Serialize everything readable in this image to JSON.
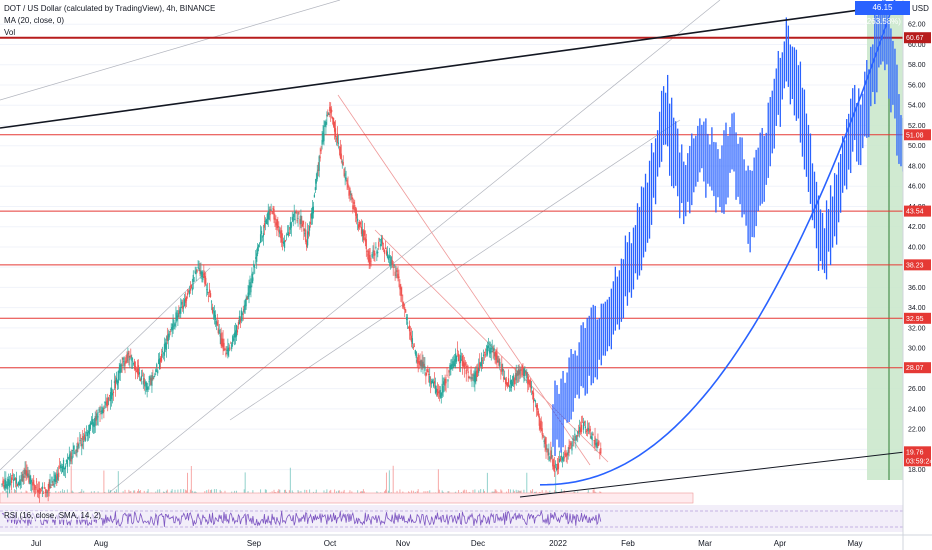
{
  "legend": {
    "title": "DOT / US Dollar (calculated by TradingView), 4h, BINANCE",
    "ma": "MA (20, close, 0)",
    "vol": "Vol"
  },
  "rsi_legend": "RSI (16, close, SMA, 14, 2)",
  "currency": "USD",
  "top_tag": "46.15 (263.58%)",
  "colors": {
    "up": "#26a69a",
    "down": "#ef5350",
    "projection": "#2962ff",
    "hline": "#e53935",
    "hline_dark": "#b71c1c",
    "trend": "#131722",
    "rsi_bg": "#ede7f6",
    "target_zone": "#c8e6c9"
  },
  "chart_data": {
    "type": "candlestick",
    "y_axis": {
      "min": 15,
      "max": 64,
      "ticks": [
        "18.00",
        "20.00",
        "22.00",
        "24.00",
        "26.00",
        "28.00",
        "30.00",
        "32.00",
        "34.00",
        "36.00",
        "38.00",
        "40.00",
        "42.00",
        "44.00",
        "46.00",
        "48.00",
        "50.00",
        "52.00",
        "54.00",
        "56.00",
        "58.00",
        "60.00",
        "62.00"
      ]
    },
    "x_axis": {
      "ticks": [
        "Jul",
        "Aug",
        "Sep",
        "Oct",
        "Nov",
        "Dec",
        "2022",
        "Feb",
        "Mar",
        "Apr",
        "May"
      ]
    },
    "price_lines": [
      {
        "value": 60.67,
        "label": "60.67",
        "style": "dark"
      },
      {
        "value": 51.08,
        "label": "51.08",
        "style": "normal"
      },
      {
        "value": 43.54,
        "label": "43.54",
        "style": "normal"
      },
      {
        "value": 38.23,
        "label": "38.23",
        "style": "normal"
      },
      {
        "value": 32.95,
        "label": "32.95",
        "style": "normal"
      },
      {
        "value": 28.07,
        "label": "28.07",
        "style": "normal"
      }
    ],
    "current_price": {
      "value": 19.76,
      "label": "19.76",
      "countdown": "03:59:24"
    },
    "history_closes": [
      16.5,
      17.2,
      16.8,
      17.6,
      17.0,
      16.4,
      15.8,
      16.2,
      16.9,
      17.8,
      18.6,
      19.2,
      20.1,
      21.0,
      21.8,
      22.6,
      23.5,
      24.2,
      25.4,
      26.8,
      28.4,
      29.2,
      28.6,
      27.4,
      26.1,
      26.8,
      27.9,
      29.5,
      31.2,
      32.6,
      33.8,
      34.9,
      36.2,
      37.8,
      37.1,
      35.4,
      33.2,
      31.0,
      29.6,
      30.4,
      32.1,
      33.8,
      35.6,
      38.4,
      40.9,
      42.8,
      43.6,
      41.9,
      40.3,
      41.7,
      43.2,
      42.6,
      40.5,
      43.8,
      47.9,
      51.6,
      53.9,
      51.2,
      48.6,
      46.3,
      44.1,
      42.2,
      40.9,
      38.6,
      39.8,
      40.5,
      39.1,
      38.3,
      36.4,
      33.6,
      31.2,
      29.1,
      28.4,
      27.3,
      26.2,
      25.1,
      26.8,
      28.1,
      29.4,
      28.6,
      27.5,
      27.1,
      28.3,
      29.6,
      30.2,
      28.9,
      27.6,
      26.4,
      26.9,
      28.0,
      27.4,
      25.8,
      23.6,
      21.2,
      19.6,
      18.2,
      18.8,
      19.6,
      20.5,
      21.8,
      22.4,
      21.6,
      20.7,
      19.9
    ],
    "projection_closes": [
      22.8,
      24.5,
      25.6,
      27.2,
      28.4,
      29.8,
      30.4,
      31.2,
      31.9,
      33.4,
      35.1,
      36.8,
      38.1,
      40.2,
      42.4,
      44.8,
      47.6,
      50.9,
      53.2,
      49.8,
      47.2,
      45.6,
      46.8,
      48.9,
      49.7,
      48.4,
      47.1,
      46.2,
      48.5,
      49.8,
      47.6,
      45.4,
      43.1,
      45.8,
      48.2,
      50.4,
      53.6,
      56.8,
      58.9,
      57.2,
      54.6,
      50.8,
      46.4,
      42.1,
      39.5,
      41.8,
      44.2,
      46.9,
      49.8,
      52.6,
      51.4,
      53.8,
      56.9,
      60.1,
      62.4,
      58.6,
      54.2,
      49.8,
      47.6
    ]
  }
}
